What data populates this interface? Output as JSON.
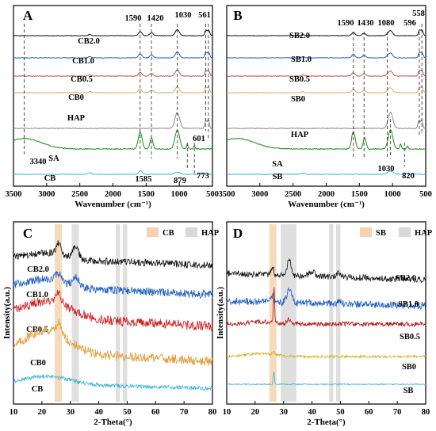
{
  "chart_data": [
    {
      "panel": "A",
      "type": "line",
      "xlabel": "Wavenumber (cm⁻¹)",
      "xlim": [
        3500,
        500
      ],
      "xticks": [
        3500,
        3000,
        2500,
        2000,
        1500,
        1000,
        500
      ],
      "series": [
        {
          "name": "CB2.0",
          "color": "#111111"
        },
        {
          "name": "CB1.0",
          "color": "#1f5fbf"
        },
        {
          "name": "CB0.5",
          "color": "#c0504d"
        },
        {
          "name": "CB0",
          "color": "#e0a860"
        },
        {
          "name": "HAP",
          "color": "#8a8a8a"
        },
        {
          "name": "SA",
          "color": "#1a8a1a"
        },
        {
          "name": "CB",
          "color": "#3db7d8"
        }
      ],
      "annotations": [
        {
          "text": "1590",
          "x": 1590
        },
        {
          "text": "1420",
          "x": 1420
        },
        {
          "text": "1030",
          "x": 1030
        },
        {
          "text": "561",
          "x": 561
        },
        {
          "text": "601",
          "x": 601
        },
        {
          "text": "3340",
          "x": 3340
        },
        {
          "text": "1585",
          "x": 1585
        },
        {
          "text": "879",
          "x": 879
        },
        {
          "text": "773",
          "x": 773
        }
      ]
    },
    {
      "panel": "B",
      "type": "line",
      "xlabel": "Wavenumber (cm⁻¹)",
      "xlim": [
        3500,
        500
      ],
      "xticks": [
        3500,
        3000,
        2500,
        2000,
        1500,
        1000,
        500
      ],
      "series": [
        {
          "name": "SB2.0",
          "color": "#111111"
        },
        {
          "name": "SB1.0",
          "color": "#1f5fbf"
        },
        {
          "name": "SB0.5",
          "color": "#c0504d"
        },
        {
          "name": "SB0",
          "color": "#e0a860"
        },
        {
          "name": "HAP",
          "color": "#8a8a8a"
        },
        {
          "name": "SA",
          "color": "#1a8a1a"
        },
        {
          "name": "SB",
          "color": "#3db7d8"
        }
      ],
      "annotations": [
        {
          "text": "1590",
          "x": 1590
        },
        {
          "text": "1430",
          "x": 1430
        },
        {
          "text": "1080",
          "x": 1080
        },
        {
          "text": "596",
          "x": 596
        },
        {
          "text": "558",
          "x": 558
        },
        {
          "text": "1030",
          "x": 1030
        },
        {
          "text": "820",
          "x": 820
        }
      ]
    },
    {
      "panel": "C",
      "type": "line",
      "xlabel": "2-Theta(°)",
      "ylabel": "Intensity(a.u.)",
      "xlim": [
        10,
        80
      ],
      "xticks": [
        10,
        20,
        30,
        40,
        50,
        60,
        70,
        80
      ],
      "legend": [
        {
          "name": "CB",
          "color": "#f6d2b0"
        },
        {
          "name": "HAP",
          "color": "#d9d9d9"
        }
      ],
      "bands": [
        {
          "from": 24.5,
          "to": 27,
          "color": "#f6d2b0"
        },
        {
          "from": 30.5,
          "to": 33,
          "color": "#d9d9d9"
        },
        {
          "from": 46,
          "to": 47.5,
          "color": "#d9d9d9"
        },
        {
          "from": 48.5,
          "to": 50,
          "color": "#d9d9d9"
        }
      ],
      "series": [
        {
          "name": "CB2.0",
          "color": "#111111"
        },
        {
          "name": "CB1.0",
          "color": "#1f5fbf"
        },
        {
          "name": "CB0.5",
          "color": "#d02020"
        },
        {
          "name": "CB0",
          "color": "#e0a040"
        },
        {
          "name": "CB",
          "color": "#3db7d8"
        }
      ]
    },
    {
      "panel": "D",
      "type": "line",
      "xlabel": "2-Theta(°)",
      "ylabel": "Intensity(a.u.)",
      "xlim": [
        10,
        80
      ],
      "xticks": [
        10,
        20,
        30,
        40,
        50,
        60,
        70,
        80
      ],
      "legend": [
        {
          "name": "SB",
          "color": "#f6d2b0"
        },
        {
          "name": "HAP",
          "color": "#d9d9d9"
        }
      ],
      "bands": [
        {
          "from": 25,
          "to": 27.5,
          "color": "#f6d2b0"
        },
        {
          "from": 29,
          "to": 34.5,
          "color": "#d9d9d9"
        },
        {
          "from": 46,
          "to": 47.5,
          "color": "#d9d9d9"
        },
        {
          "from": 48.5,
          "to": 50,
          "color": "#d9d9d9"
        }
      ],
      "series": [
        {
          "name": "SB2.0",
          "color": "#111111"
        },
        {
          "name": "SB1.0",
          "color": "#1f5fbf"
        },
        {
          "name": "SB0.5",
          "color": "#b01818"
        },
        {
          "name": "SB0",
          "color": "#d8b020"
        },
        {
          "name": "SB",
          "color": "#3db7d8"
        }
      ]
    }
  ]
}
